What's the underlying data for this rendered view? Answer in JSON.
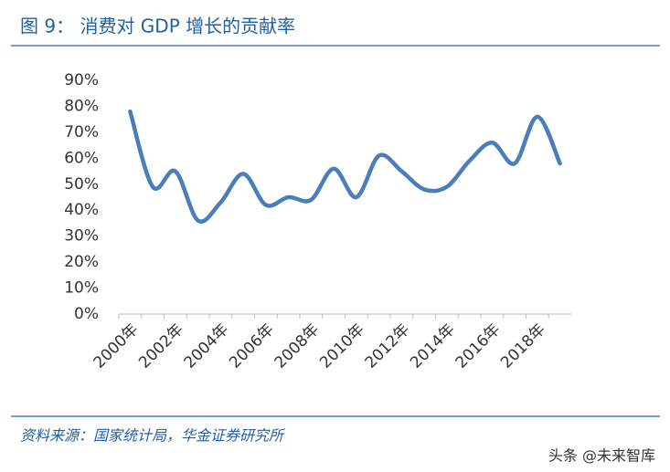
{
  "chart_data": {
    "type": "line",
    "title": "图 9： 消费对 GDP 增长的贡献率",
    "source": "资料来源：国家统计局，华金证券研究所",
    "watermark": "头条 @未来智库",
    "categories": [
      "2000年",
      null,
      "2002年",
      null,
      "2004年",
      null,
      "2006年",
      null,
      "2008年",
      null,
      "2010年",
      null,
      "2012年",
      null,
      "2014年",
      null,
      "2016年",
      null,
      "2018年",
      null
    ],
    "series": [
      {
        "name": "消费对GDP增长的贡献率",
        "color": "#4a7ebb",
        "values": [
          78,
          49,
          55,
          36,
          43,
          54,
          42,
          45,
          44,
          56,
          45,
          61,
          55,
          48,
          49,
          59,
          66,
          58,
          76,
          58
        ]
      }
    ],
    "ylim": [
      0,
      90
    ],
    "yticks": [
      {
        "value": 0,
        "label": "0%"
      },
      {
        "value": 10,
        "label": "10%"
      },
      {
        "value": 20,
        "label": "20%"
      },
      {
        "value": 30,
        "label": "30%"
      },
      {
        "value": 40,
        "label": "40%"
      },
      {
        "value": 50,
        "label": "50%"
      },
      {
        "value": 60,
        "label": "60%"
      },
      {
        "value": 70,
        "label": "70%"
      },
      {
        "value": 80,
        "label": "80%"
      },
      {
        "value": 90,
        "label": "90%"
      }
    ],
    "grid": false
  }
}
